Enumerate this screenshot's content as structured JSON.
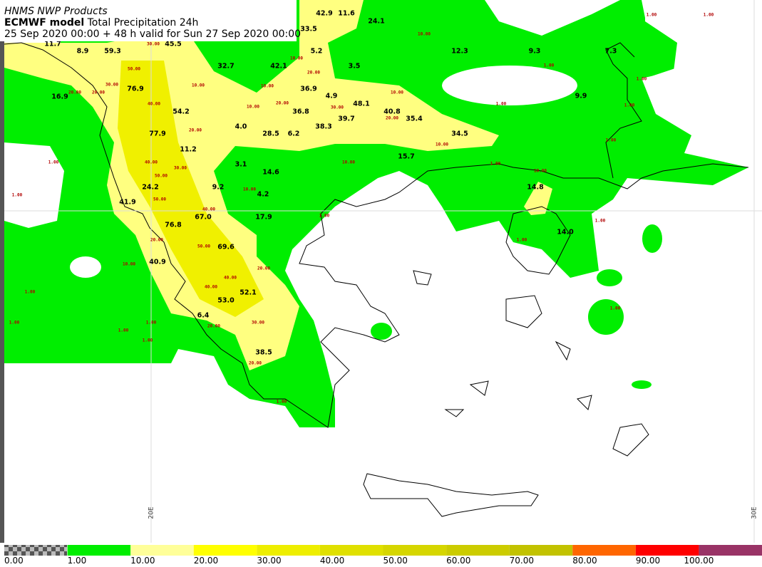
{
  "header": {
    "line1": "HNMS NWP Products",
    "model": "ECMWF model",
    "product": "Total Precipitation 24h",
    "line3": "25 Sep 2020 00:00 + 48 h valid for Sun 27 Sep 2020 00:00"
  },
  "map": {
    "station_values": [
      "42.9",
      "11.6",
      "24.1",
      "33.5",
      "11.7",
      "45.5",
      "8.9",
      "59.3",
      "5.2",
      "12.3",
      "9.3",
      "7.3",
      "32.7",
      "42.1",
      "3.5",
      "76.9",
      "36.9",
      "4.9",
      "9.9",
      "16.9",
      "48.1",
      "54.2",
      "36.8",
      "40.8",
      "39.7",
      "35.4",
      "4.0",
      "38.3",
      "77.9",
      "28.5",
      "6.2",
      "34.5",
      "11.2",
      "15.7",
      "3.1",
      "14.6",
      "24.2",
      "9.2",
      "14.8",
      "4.2",
      "41.9",
      "67.0",
      "17.9",
      "76.8",
      "14.0",
      "69.6",
      "40.9",
      "52.1",
      "53.0",
      "6.4",
      "38.5"
    ],
    "contour_labels": [
      "1.00",
      "1.00",
      "1.00",
      "1.00",
      "1.00",
      "1.00",
      "1.00",
      "1.00",
      "1.00",
      "1.00",
      "1.00",
      "1.00",
      "1.00",
      "1.00",
      "1.00",
      "1.00",
      "1.00",
      "1.00",
      "1.00",
      "1.00",
      "10.00",
      "10.00",
      "10.00",
      "10.00",
      "10.00",
      "10.00",
      "10.00",
      "10.00",
      "10.00",
      "10.00",
      "10.00",
      "20.00",
      "20.00",
      "20.00",
      "20.00",
      "20.00",
      "20.00",
      "20.00",
      "20.00",
      "20.00",
      "20.00",
      "30.00",
      "30.00",
      "30.00",
      "30.00",
      "30.00",
      "40.00",
      "40.00",
      "40.00",
      "40.00",
      "40.00",
      "50.00",
      "50.00",
      "50.00",
      "50.00"
    ],
    "longitude_labels": [
      "20E",
      "30E"
    ]
  },
  "legend": {
    "labels": [
      "0.00",
      "1.00",
      "10.00",
      "20.00",
      "30.00",
      "40.00",
      "50.00",
      "60.00",
      "70.00",
      "80.00",
      "90.00",
      "100.00"
    ],
    "colors": [
      "#00ee00",
      "#ffff99",
      "#ffff00",
      "#eeee00",
      "#e0e000",
      "#d6d600",
      "#cccc00",
      "#c2c200",
      "#ff6600",
      "#ff0000",
      "#993366"
    ]
  }
}
